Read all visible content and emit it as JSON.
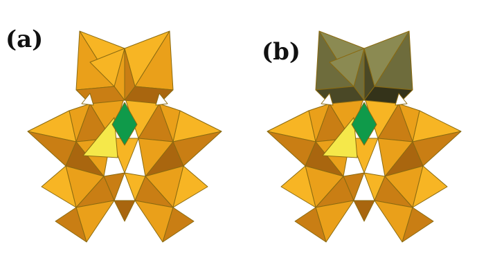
{
  "panels": [
    {
      "label": "(a)",
      "cap_style": "orange"
    },
    {
      "label": "(b)",
      "cap_style": "olive"
    }
  ],
  "colors": {
    "orange_light": "#f7b524",
    "orange_mid": "#eaa01a",
    "orange_dark": "#c97e14",
    "orange_deep": "#a9660f",
    "yellow_face": "#f5e84a",
    "green_center": "#0f9a4a",
    "olive_light": "#8b8a52",
    "olive_mid": "#6e6c3c",
    "olive_dark": "#4a4826",
    "olive_deep": "#34331a"
  }
}
